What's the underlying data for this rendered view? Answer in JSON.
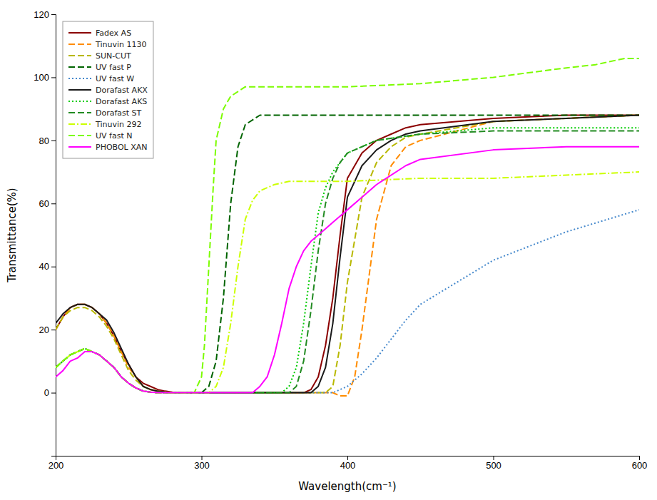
{
  "chart_data": {
    "type": "line",
    "xlabel": "Wavelength(cm⁻¹)",
    "ylabel": "Transmittance(%)",
    "xlim": [
      200,
      600
    ],
    "ylim": [
      -20,
      120
    ],
    "xticks": [
      200,
      300,
      400,
      500,
      600
    ],
    "yticks": [
      0,
      20,
      40,
      60,
      80,
      100,
      120
    ],
    "grid": false,
    "legend": "upper left",
    "series": [
      {
        "name": "Fadex AS",
        "color": "#8B0000",
        "line_style": "solid",
        "x": [
          200,
          205,
          210,
          215,
          220,
          225,
          230,
          235,
          240,
          245,
          250,
          255,
          260,
          265,
          270,
          275,
          280,
          285,
          290,
          295,
          300,
          310,
          320,
          330,
          340,
          350,
          360,
          370,
          375,
          380,
          385,
          390,
          395,
          400,
          410,
          420,
          430,
          440,
          450,
          500,
          550,
          600
        ],
        "values": [
          20,
          24,
          27,
          28,
          28,
          27,
          25,
          22,
          18,
          13,
          9,
          5,
          3,
          2,
          1,
          0.5,
          0.2,
          0,
          0,
          0,
          0,
          0,
          0,
          0,
          0,
          0,
          0,
          0,
          1,
          5,
          15,
          30,
          50,
          68,
          76,
          80,
          82,
          84,
          85,
          87,
          88,
          88
        ]
      },
      {
        "name": "Tinuvin 1130",
        "color": "#FF8C00",
        "line_style": "dashed",
        "x": [
          200,
          205,
          210,
          215,
          220,
          225,
          230,
          235,
          240,
          245,
          250,
          255,
          260,
          265,
          270,
          275,
          280,
          285,
          290,
          295,
          300,
          310,
          320,
          330,
          340,
          350,
          360,
          370,
          375,
          380,
          385,
          390,
          395,
          400,
          405,
          410,
          420,
          430,
          440,
          450,
          500,
          550,
          600
        ],
        "values": [
          20,
          24,
          27,
          28,
          28,
          27,
          25,
          22,
          18,
          13,
          8,
          5,
          2,
          1,
          0.5,
          0.2,
          0,
          0,
          0,
          0,
          0,
          0,
          0,
          0,
          0,
          0,
          0,
          0,
          0,
          0,
          0,
          0,
          -1,
          -1,
          5,
          20,
          55,
          72,
          78,
          80,
          86,
          87,
          88
        ]
      },
      {
        "name": "SUN-CUT",
        "color": "#B8B800",
        "line_style": "dashed",
        "x": [
          200,
          205,
          210,
          215,
          220,
          225,
          230,
          235,
          240,
          245,
          250,
          255,
          260,
          265,
          270,
          275,
          280,
          285,
          290,
          295,
          300,
          310,
          320,
          330,
          340,
          350,
          360,
          370,
          375,
          380,
          385,
          390,
          395,
          400,
          410,
          420,
          430,
          440,
          450,
          500,
          550,
          600
        ],
        "values": [
          20,
          24,
          26,
          27,
          27,
          26,
          24,
          21,
          17,
          12,
          7,
          4,
          2,
          1,
          0.5,
          0.2,
          0,
          0,
          0,
          0,
          0,
          0,
          0,
          0,
          0,
          0,
          0,
          0,
          0,
          0,
          0,
          2,
          15,
          35,
          62,
          73,
          78,
          81,
          82,
          86,
          87,
          88
        ]
      },
      {
        "name": "UV fast P",
        "color": "#006400",
        "line_style": "dashed",
        "x": [
          200,
          205,
          210,
          215,
          220,
          225,
          230,
          235,
          240,
          245,
          250,
          255,
          260,
          265,
          270,
          275,
          280,
          285,
          290,
          295,
          300,
          305,
          310,
          315,
          320,
          325,
          330,
          340,
          350,
          360,
          400,
          450,
          500,
          550,
          600
        ],
        "values": [
          8,
          10,
          12,
          13,
          14,
          13,
          12,
          10,
          8,
          5,
          3,
          1.5,
          0.5,
          0.2,
          0,
          0,
          0,
          0,
          0,
          0,
          0,
          2,
          10,
          30,
          60,
          78,
          85,
          88,
          88,
          88,
          88,
          88,
          88,
          88,
          88
        ]
      },
      {
        "name": "UV fast W",
        "color": "#4488CC",
        "line_style": "dotted",
        "x": [
          200,
          205,
          210,
          215,
          220,
          225,
          230,
          235,
          240,
          245,
          250,
          255,
          260,
          265,
          270,
          275,
          280,
          285,
          290,
          295,
          300,
          310,
          320,
          330,
          340,
          350,
          360,
          370,
          380,
          390,
          400,
          410,
          420,
          430,
          440,
          450,
          500,
          550,
          600
        ],
        "values": [
          8,
          10,
          12,
          13,
          14,
          13,
          12,
          10,
          8,
          5,
          3,
          1.5,
          0.5,
          0.2,
          0,
          0,
          0,
          0,
          0,
          0,
          0,
          0,
          0,
          0,
          0,
          0,
          0,
          0,
          0,
          0,
          2,
          6,
          11,
          17,
          23,
          28,
          42,
          51,
          58
        ]
      },
      {
        "name": "Dorafast AKX",
        "color": "#1A1A1A",
        "line_style": "solid",
        "x": [
          200,
          205,
          210,
          215,
          220,
          225,
          230,
          235,
          240,
          245,
          250,
          255,
          260,
          265,
          270,
          275,
          280,
          285,
          290,
          295,
          300,
          310,
          320,
          330,
          340,
          350,
          360,
          370,
          375,
          380,
          385,
          390,
          395,
          400,
          410,
          420,
          430,
          440,
          450,
          500,
          550,
          600
        ],
        "values": [
          22,
          25,
          27,
          28,
          28,
          27,
          25,
          23,
          19,
          14,
          9,
          5,
          2,
          1,
          0.5,
          0.2,
          0,
          0,
          0,
          0,
          0,
          0,
          0,
          0,
          0,
          0,
          0,
          0,
          0,
          2,
          8,
          22,
          43,
          62,
          72,
          77,
          80,
          82,
          83,
          86,
          87,
          88
        ]
      },
      {
        "name": "Dorafast AKS",
        "color": "#00CC00",
        "line_style": "dotted",
        "x": [
          200,
          205,
          210,
          215,
          220,
          225,
          230,
          235,
          240,
          245,
          250,
          255,
          260,
          265,
          270,
          275,
          280,
          285,
          290,
          295,
          300,
          310,
          320,
          330,
          340,
          350,
          355,
          360,
          365,
          370,
          375,
          380,
          385,
          390,
          400,
          420,
          450,
          500,
          550,
          600
        ],
        "values": [
          8,
          10,
          12,
          13,
          14,
          13,
          12,
          10,
          8,
          5,
          3,
          1.5,
          0.5,
          0.2,
          0,
          0,
          0,
          0,
          0,
          0,
          0,
          0,
          0,
          0,
          0,
          0,
          0,
          2,
          8,
          22,
          40,
          57,
          65,
          70,
          76,
          80,
          82,
          84,
          84,
          84
        ]
      },
      {
        "name": "Dorafast ST",
        "color": "#228B22",
        "line_style": "dashed",
        "x": [
          200,
          205,
          210,
          215,
          220,
          225,
          230,
          235,
          240,
          245,
          250,
          255,
          260,
          265,
          270,
          275,
          280,
          285,
          290,
          295,
          300,
          310,
          320,
          330,
          340,
          350,
          360,
          365,
          370,
          375,
          380,
          385,
          390,
          395,
          400,
          420,
          450,
          500,
          550,
          600
        ],
        "values": [
          8,
          10,
          12,
          13,
          14,
          13,
          12,
          10,
          8,
          5,
          3,
          1.5,
          0.5,
          0.2,
          0,
          0,
          0,
          0,
          0,
          0,
          0,
          0,
          0,
          0,
          0,
          0,
          0,
          2,
          10,
          26,
          45,
          60,
          68,
          73,
          76,
          80,
          82,
          83,
          83,
          83
        ]
      },
      {
        "name": "Tinuvin 292",
        "color": "#CCFF00",
        "line_style": "dashdot",
        "x": [
          200,
          205,
          210,
          215,
          220,
          225,
          230,
          235,
          240,
          245,
          250,
          255,
          260,
          265,
          270,
          275,
          280,
          285,
          290,
          295,
          300,
          305,
          310,
          315,
          320,
          325,
          330,
          335,
          340,
          345,
          350,
          360,
          370,
          380,
          400,
          450,
          500,
          550,
          600
        ],
        "values": [
          8,
          10,
          12,
          13,
          14,
          13,
          12,
          10,
          8,
          5,
          3,
          1.5,
          0.5,
          0.2,
          0,
          0,
          0,
          0,
          0,
          0,
          0,
          0,
          2,
          8,
          22,
          40,
          55,
          61,
          64,
          65,
          66,
          67,
          67,
          67,
          67,
          68,
          68,
          69,
          70
        ]
      },
      {
        "name": "UV fast N",
        "color": "#7CFC00",
        "line_style": "dashed",
        "x": [
          200,
          205,
          210,
          215,
          220,
          225,
          230,
          235,
          240,
          245,
          250,
          255,
          260,
          265,
          270,
          275,
          280,
          285,
          290,
          295,
          300,
          302,
          305,
          308,
          310,
          315,
          320,
          330,
          340,
          400,
          450,
          500,
          550,
          570,
          580,
          590,
          595,
          600
        ],
        "values": [
          8,
          10,
          12,
          13,
          14,
          13,
          12,
          10,
          8,
          5,
          3,
          1.5,
          0.5,
          0.2,
          0,
          0,
          0,
          0,
          0,
          0,
          5,
          15,
          40,
          65,
          80,
          90,
          94,
          97,
          97,
          97,
          98,
          100,
          103,
          104,
          105,
          106,
          106,
          106
        ]
      },
      {
        "name": "PHOBOL XAN",
        "color": "#FF00FF",
        "line_style": "solid",
        "x": [
          200,
          205,
          210,
          215,
          220,
          225,
          230,
          235,
          240,
          245,
          250,
          255,
          260,
          265,
          270,
          275,
          280,
          285,
          290,
          295,
          300,
          310,
          320,
          330,
          335,
          340,
          345,
          350,
          355,
          360,
          365,
          370,
          375,
          380,
          385,
          390,
          395,
          400,
          410,
          420,
          440,
          450,
          500,
          550,
          600
        ],
        "values": [
          5,
          7,
          10,
          11,
          13,
          13,
          12,
          10,
          8,
          5,
          3,
          1.5,
          0.5,
          0.2,
          0,
          0,
          0,
          0,
          0,
          0,
          0,
          0,
          0,
          0,
          0,
          2,
          5,
          12,
          22,
          33,
          40,
          45,
          48,
          50,
          52,
          54,
          56,
          58,
          62,
          66,
          72,
          74,
          77,
          78,
          78
        ]
      }
    ]
  }
}
